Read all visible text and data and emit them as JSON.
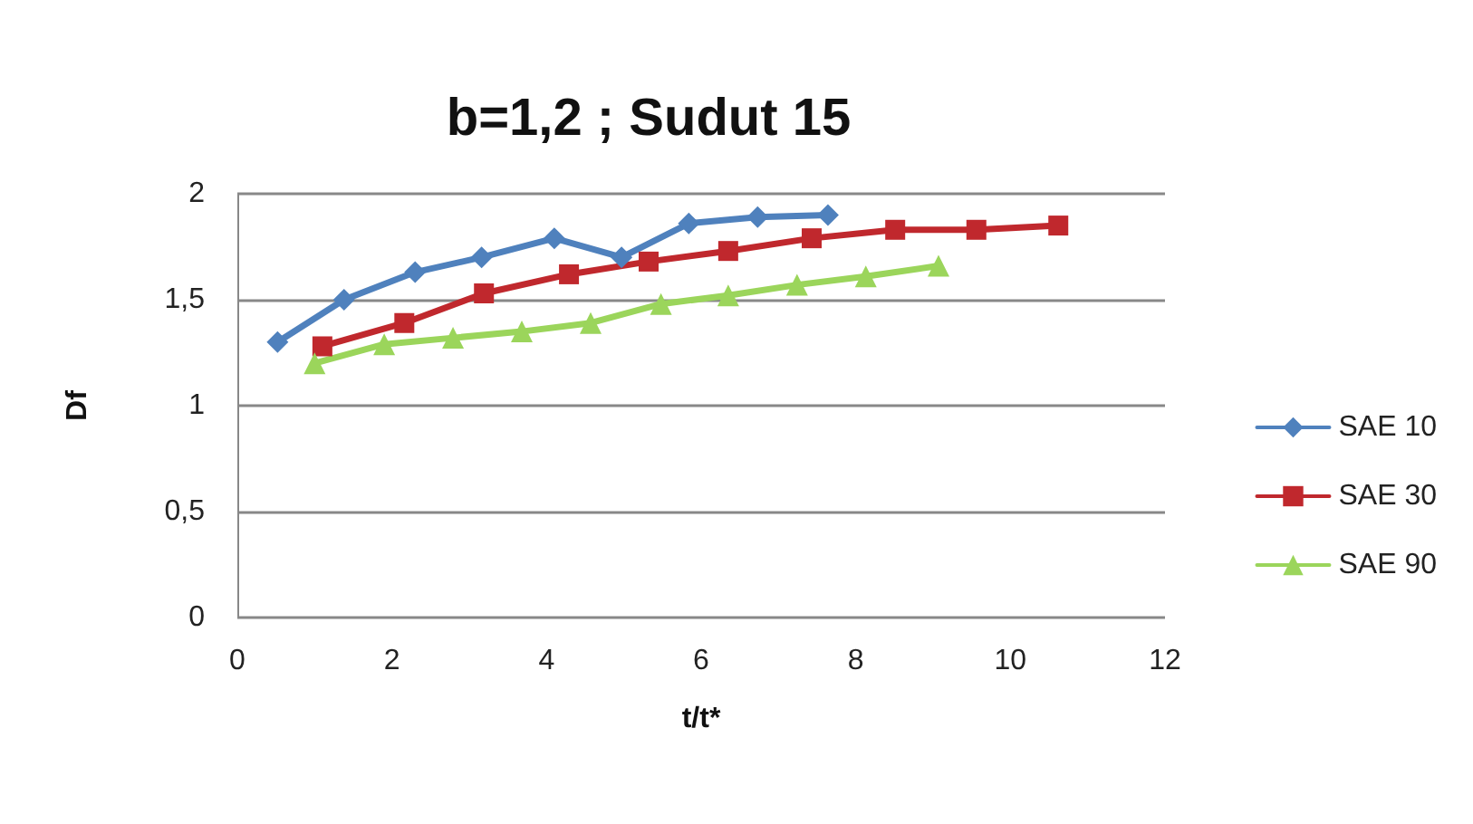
{
  "chart_data": {
    "type": "line",
    "title": "b=1,2 ; Sudut 15",
    "xlabel": "t/t*",
    "ylabel": "Df",
    "xlim": [
      0,
      12
    ],
    "xticks": [
      0,
      2,
      4,
      6,
      8,
      10,
      12
    ],
    "ylim": [
      0,
      2
    ],
    "yticks": [
      {
        "value": 0,
        "label": "0"
      },
      {
        "value": 0.5,
        "label": "0,5"
      },
      {
        "value": 1,
        "label": "1"
      },
      {
        "value": 1.5,
        "label": "1,5"
      },
      {
        "value": 2,
        "label": "2"
      }
    ],
    "grid": "y",
    "legend": "right",
    "series": [
      {
        "name": "SAE 10",
        "color": "#4f81bd",
        "marker": "diamond",
        "x": [
          0.52,
          1.38,
          2.3,
          3.16,
          4.1,
          4.97,
          5.84,
          6.73,
          7.64
        ],
        "values": [
          1.3,
          1.5,
          1.63,
          1.7,
          1.79,
          1.7,
          1.86,
          1.89,
          1.9
        ]
      },
      {
        "name": "SAE 30",
        "color": "#c0282d",
        "marker": "square",
        "x": [
          1.1,
          2.16,
          3.19,
          4.29,
          5.32,
          6.35,
          7.43,
          8.51,
          9.56,
          10.62
        ],
        "values": [
          1.28,
          1.39,
          1.53,
          1.62,
          1.68,
          1.73,
          1.79,
          1.83,
          1.83,
          1.85
        ]
      },
      {
        "name": "SAE 90",
        "color": "#9bd55b",
        "marker": "triangle",
        "x": [
          1.0,
          1.9,
          2.79,
          3.68,
          4.57,
          5.48,
          6.35,
          7.24,
          8.13,
          9.07
        ],
        "values": [
          1.2,
          1.29,
          1.32,
          1.35,
          1.39,
          1.48,
          1.52,
          1.57,
          1.61,
          1.66
        ]
      }
    ]
  }
}
